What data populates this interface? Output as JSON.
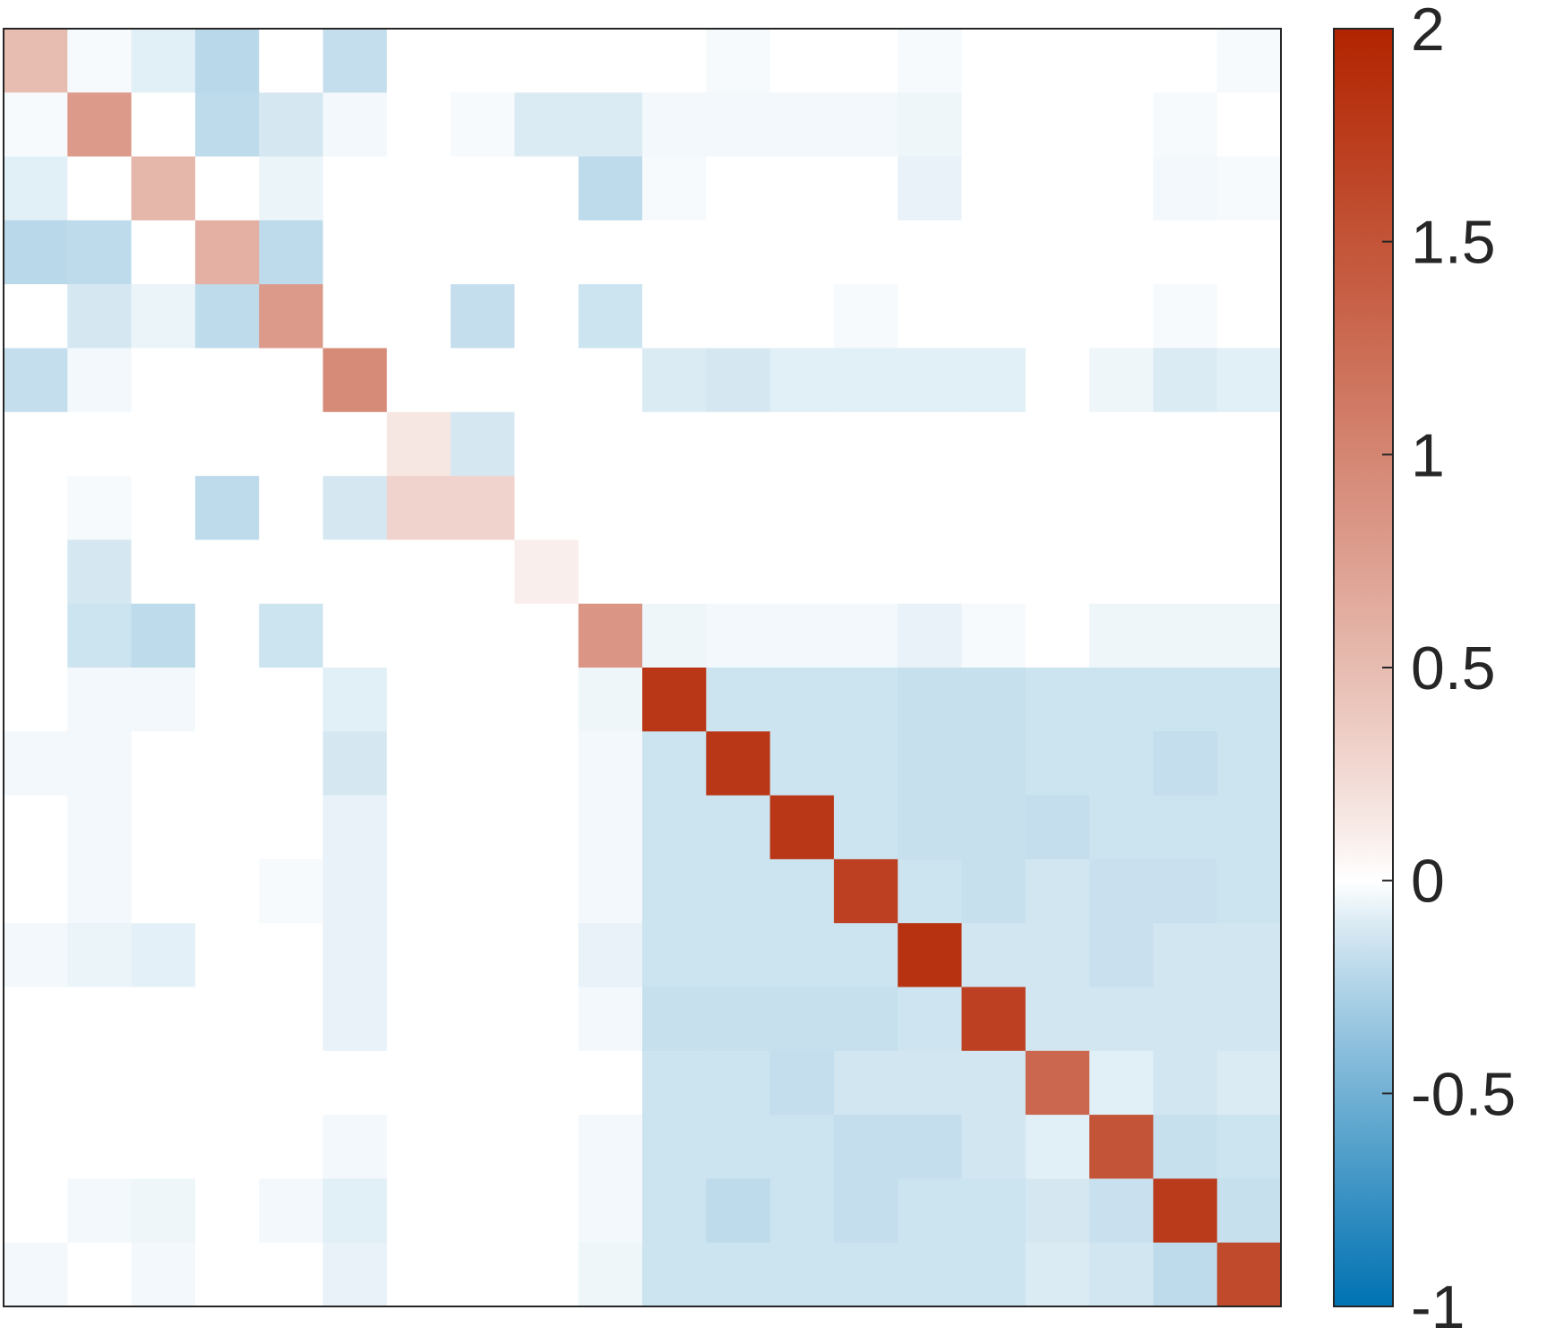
{
  "chart_data": {
    "type": "heatmap",
    "title": "",
    "xlabel": "",
    "ylabel": "",
    "rows": 20,
    "cols": 20,
    "colormap": {
      "negative_color": "#0072b2",
      "zero_color": "#ffffff",
      "positive_color": "#b22400"
    },
    "colorbar": {
      "min": -1,
      "max": 2,
      "ticks": [
        -1,
        -0.5,
        0,
        0.5,
        1,
        1.5,
        2
      ],
      "tick_labels": [
        "-1",
        "-0.5",
        "0",
        "0.5",
        "1",
        "1.5",
        "2"
      ],
      "position": "right"
    },
    "grid": false,
    "matrix": [
      [
        0.5,
        -0.02,
        -0.08,
        -0.22,
        0,
        -0.18,
        0,
        0,
        0,
        0,
        0,
        -0.02,
        0,
        0,
        -0.02,
        0,
        0,
        0,
        0,
        -0.02
      ],
      [
        -0.02,
        0.8,
        0,
        -0.2,
        -0.12,
        -0.03,
        0,
        -0.02,
        -0.1,
        -0.1,
        -0.03,
        -0.03,
        -0.03,
        -0.03,
        -0.04,
        0,
        0,
        0,
        -0.02,
        0
      ],
      [
        -0.08,
        0,
        0.55,
        0,
        -0.05,
        0,
        0,
        0,
        0,
        -0.2,
        -0.02,
        0,
        0,
        0,
        -0.06,
        0,
        0,
        0,
        -0.03,
        -0.02
      ],
      [
        -0.22,
        -0.2,
        0,
        0.6,
        -0.2,
        0,
        0,
        0,
        0,
        0,
        0,
        0,
        0,
        0,
        0,
        0,
        0,
        0,
        0,
        0
      ],
      [
        0,
        -0.12,
        -0.05,
        -0.2,
        0.8,
        0,
        0,
        -0.18,
        0,
        -0.15,
        0,
        0,
        0,
        -0.02,
        0,
        0,
        0,
        0,
        -0.02,
        0
      ],
      [
        -0.18,
        -0.03,
        0,
        0,
        0,
        0.95,
        0,
        0,
        0,
        0,
        -0.1,
        -0.12,
        -0.08,
        -0.08,
        -0.08,
        -0.08,
        0,
        -0.04,
        -0.1,
        -0.08
      ],
      [
        0,
        0,
        0,
        0,
        0,
        0,
        0.15,
        -0.12,
        0,
        0,
        0,
        0,
        0,
        0,
        0,
        0,
        0,
        0,
        0,
        0
      ],
      [
        0,
        -0.02,
        0,
        -0.2,
        0,
        -0.12,
        0.3,
        0.3,
        0,
        0,
        0,
        0,
        0,
        0,
        0,
        0,
        0,
        0,
        0,
        0
      ],
      [
        0,
        -0.12,
        0,
        0,
        0,
        0,
        0,
        0,
        0.1,
        0,
        0,
        0,
        0,
        0,
        0,
        0,
        0,
        0,
        0,
        0
      ],
      [
        0,
        -0.15,
        -0.2,
        0,
        -0.15,
        0,
        0,
        0,
        0,
        0.85,
        -0.04,
        -0.03,
        -0.03,
        -0.03,
        -0.06,
        -0.02,
        0,
        -0.04,
        -0.04,
        -0.04
      ],
      [
        0,
        -0.03,
        -0.03,
        0,
        0,
        -0.08,
        0,
        0,
        0,
        -0.04,
        1.8,
        -0.15,
        -0.15,
        -0.15,
        -0.17,
        -0.17,
        -0.15,
        -0.15,
        -0.15,
        -0.15
      ],
      [
        -0.03,
        -0.03,
        0,
        0,
        0,
        -0.12,
        0,
        0,
        0,
        -0.03,
        -0.15,
        1.8,
        -0.15,
        -0.15,
        -0.17,
        -0.17,
        -0.15,
        -0.15,
        -0.18,
        -0.15
      ],
      [
        0,
        -0.03,
        0,
        0,
        0,
        -0.06,
        0,
        0,
        0,
        -0.03,
        -0.15,
        -0.15,
        1.8,
        -0.15,
        -0.17,
        -0.17,
        -0.18,
        -0.15,
        -0.15,
        -0.15
      ],
      [
        0,
        -0.03,
        0,
        0,
        -0.02,
        -0.06,
        0,
        0,
        0,
        -0.03,
        -0.15,
        -0.15,
        -0.15,
        1.7,
        -0.15,
        -0.17,
        -0.13,
        -0.16,
        -0.16,
        -0.15
      ],
      [
        -0.03,
        -0.05,
        -0.07,
        0,
        0,
        -0.06,
        0,
        0,
        0,
        -0.06,
        -0.15,
        -0.15,
        -0.15,
        -0.15,
        1.85,
        -0.13,
        -0.13,
        -0.16,
        -0.13,
        -0.13
      ],
      [
        0,
        0,
        0,
        0,
        0,
        -0.06,
        0,
        0,
        0,
        -0.03,
        -0.17,
        -0.17,
        -0.17,
        -0.17,
        -0.14,
        1.7,
        -0.13,
        -0.13,
        -0.13,
        -0.13
      ],
      [
        0,
        0,
        0,
        0,
        0,
        0,
        0,
        0,
        0,
        0,
        -0.15,
        -0.15,
        -0.18,
        -0.13,
        -0.13,
        -0.13,
        1.3,
        -0.08,
        -0.13,
        -0.1
      ],
      [
        0,
        0,
        0,
        0,
        0,
        -0.03,
        0,
        0,
        0,
        -0.03,
        -0.15,
        -0.15,
        -0.15,
        -0.18,
        -0.18,
        -0.13,
        -0.08,
        1.5,
        -0.17,
        -0.15
      ],
      [
        0,
        -0.03,
        -0.04,
        0,
        -0.03,
        -0.08,
        0,
        0,
        0,
        -0.03,
        -0.15,
        -0.2,
        -0.15,
        -0.18,
        -0.15,
        -0.15,
        -0.12,
        -0.16,
        1.75,
        -0.17
      ],
      [
        -0.03,
        0,
        -0.03,
        0,
        0,
        -0.06,
        0,
        0,
        0,
        -0.04,
        -0.15,
        -0.15,
        -0.15,
        -0.15,
        -0.15,
        -0.15,
        -0.1,
        -0.13,
        -0.2,
        1.6
      ]
    ]
  }
}
